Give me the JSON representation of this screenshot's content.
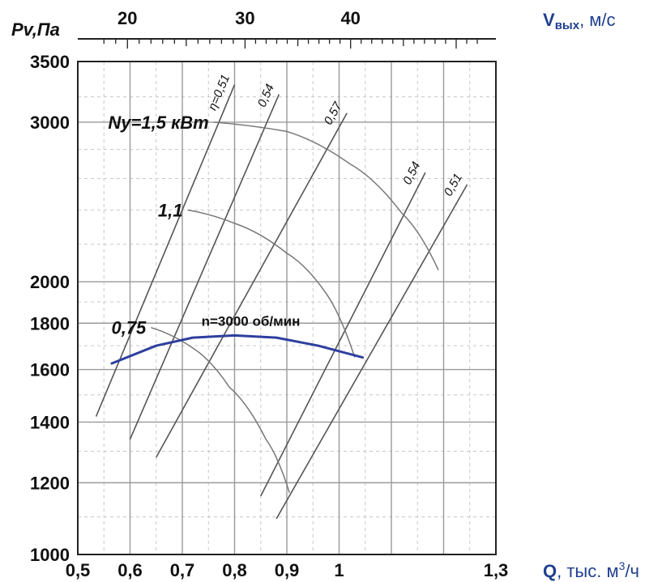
{
  "chart_data": {
    "type": "line",
    "x_axis": {
      "label_prefix": "Q",
      "label_suffix": ", тыс. м",
      "label_sup": "3",
      "label_unit_tail": "/ч",
      "range": [
        0.5,
        1.3
      ],
      "ticks": [
        {
          "value": 0.5,
          "label": "0,5"
        },
        {
          "value": 0.6,
          "label": "0,6"
        },
        {
          "value": 0.7,
          "label": "0,7"
        },
        {
          "value": 0.8,
          "label": "0,8"
        },
        {
          "value": 0.9,
          "label": "0,9"
        },
        {
          "value": 1.0,
          "label": "1"
        },
        {
          "value": 1.3,
          "label": "1,3"
        }
      ],
      "gridlines": [
        0.5,
        0.6,
        0.7,
        0.8,
        0.9,
        1.0,
        1.1,
        1.2,
        1.3
      ],
      "minor_gridlines": [
        0.55,
        0.65,
        0.75,
        0.85,
        0.95,
        1.05,
        1.15,
        1.25
      ]
    },
    "y_axis": {
      "label": "Pv,Па",
      "range": [
        1000,
        3500
      ],
      "scale": "log",
      "ticks": [
        {
          "value": 1000,
          "label": "1000"
        },
        {
          "value": 1200,
          "label": "1200"
        },
        {
          "value": 1400,
          "label": "1400"
        },
        {
          "value": 1600,
          "label": "1600"
        },
        {
          "value": 1800,
          "label": "1800"
        },
        {
          "value": 2000,
          "label": "2000"
        },
        {
          "value": 3000,
          "label": "3000"
        },
        {
          "value": 3500,
          "label": "3500"
        }
      ],
      "gridlines": [
        1000,
        1200,
        1400,
        1600,
        1800,
        2000,
        3000,
        3500
      ],
      "minor_gridlines": [
        1100,
        1300,
        1500,
        1700,
        1900,
        2200,
        2400,
        2600,
        2800,
        3200
      ]
    },
    "top_axis": {
      "label_prefix": "V",
      "label_sub": "вых",
      "label_suffix": ", м/с",
      "ticks": [
        {
          "value": 20,
          "label": "20",
          "q": 0.595
        },
        {
          "value": 30,
          "label": "30",
          "q": 0.82
        },
        {
          "value": 40,
          "label": "40",
          "q": 1.022
        }
      ]
    },
    "fan_curve": {
      "label": "n=3000 об/мин",
      "color": "#2e3f9e",
      "points": [
        [
          0.565,
          1625
        ],
        [
          0.65,
          1700
        ],
        [
          0.72,
          1735
        ],
        [
          0.8,
          1745
        ],
        [
          0.88,
          1735
        ],
        [
          0.96,
          1700
        ],
        [
          1.045,
          1650
        ]
      ]
    },
    "power_curves": [
      {
        "label": "Nу=1,5 кВт",
        "points": [
          [
            0.76,
            3000
          ],
          [
            0.9,
            2930
          ],
          [
            1.02,
            2700
          ],
          [
            1.12,
            2380
          ],
          [
            1.19,
            2060
          ]
        ]
      },
      {
        "label": "1,1",
        "points": [
          [
            0.71,
            2400
          ],
          [
            0.8,
            2320
          ],
          [
            0.9,
            2150
          ],
          [
            0.97,
            1960
          ],
          [
            1.03,
            1650
          ]
        ]
      },
      {
        "label": "0,75",
        "points": [
          [
            0.64,
            1780
          ],
          [
            0.72,
            1690
          ],
          [
            0.79,
            1530
          ],
          [
            0.86,
            1340
          ],
          [
            0.905,
            1170
          ]
        ]
      }
    ],
    "efficiency_lines": [
      {
        "label": "η=0,51",
        "points": [
          [
            0.535,
            1420
          ],
          [
            0.8,
            3300
          ]
        ]
      },
      {
        "label": "0,54",
        "points": [
          [
            0.6,
            1340
          ],
          [
            0.885,
            3220
          ]
        ]
      },
      {
        "label": "0,57",
        "points": [
          [
            0.65,
            1280
          ],
          [
            1.015,
            3070
          ]
        ]
      },
      {
        "label": "0,54",
        "points": [
          [
            0.85,
            1160
          ],
          [
            1.165,
            2640
          ]
        ]
      },
      {
        "label": "0,51",
        "points": [
          [
            0.88,
            1095
          ],
          [
            1.245,
            2560
          ]
        ]
      }
    ]
  }
}
